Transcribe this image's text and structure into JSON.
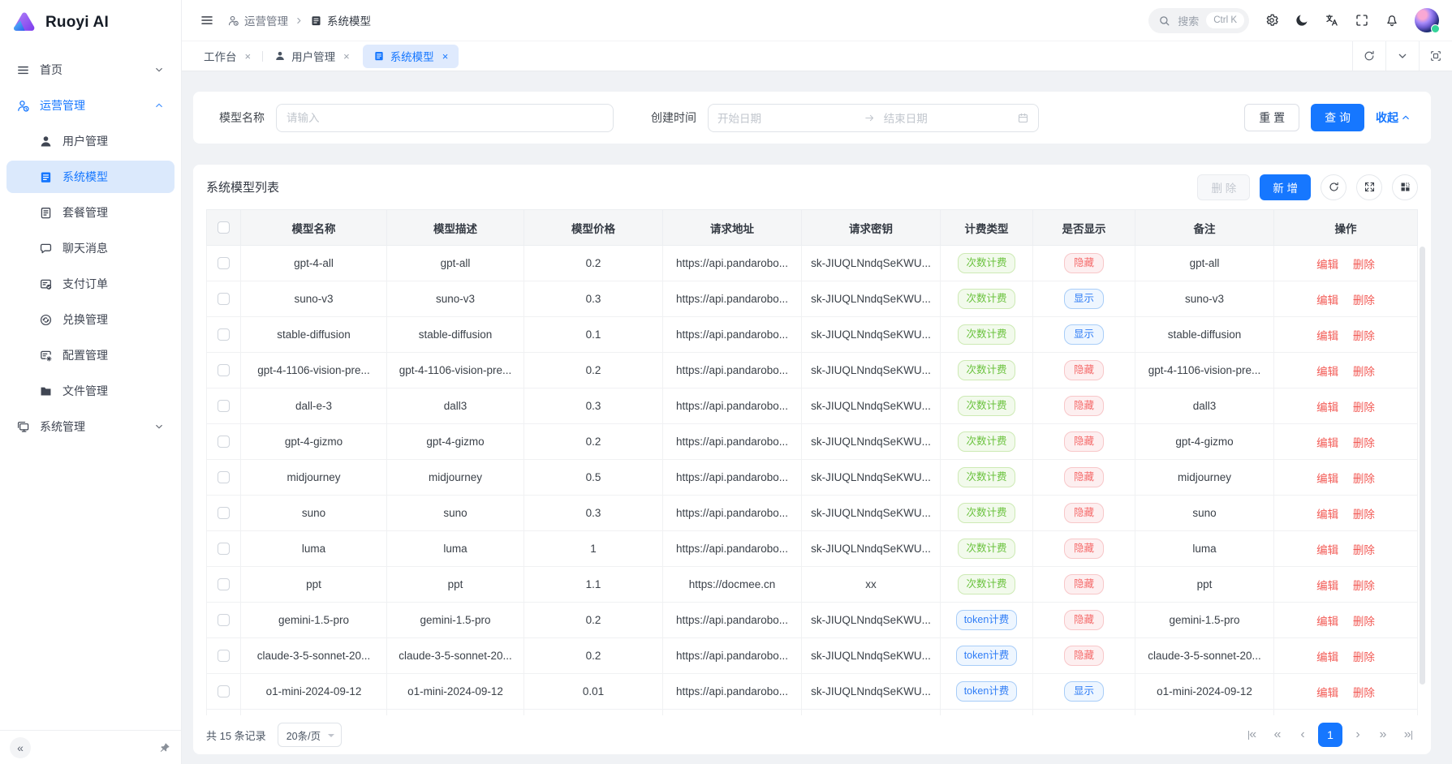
{
  "app": {
    "name": "Ruoyi AI"
  },
  "header": {
    "breadcrumb": [
      "运营管理",
      "系统模型"
    ],
    "search_placeholder": "搜索",
    "search_shortcut": "Ctrl K"
  },
  "sidebar": {
    "items": [
      {
        "label": "首页",
        "icon": "menu",
        "level": "top",
        "chevron": "chevron-down",
        "state": ""
      },
      {
        "label": "运营管理",
        "icon": "operations",
        "level": "top",
        "chevron": "chevron-up",
        "state": "open"
      },
      {
        "label": "用户管理",
        "icon": "user",
        "level": "sub",
        "chevron": "",
        "state": ""
      },
      {
        "label": "系统模型",
        "icon": "model",
        "level": "sub",
        "chevron": "",
        "state": "selected"
      },
      {
        "label": "套餐管理",
        "icon": "package",
        "level": "sub",
        "chevron": "",
        "state": ""
      },
      {
        "label": "聊天消息",
        "icon": "chat",
        "level": "sub",
        "chevron": "",
        "state": ""
      },
      {
        "label": "支付订单",
        "icon": "payment",
        "level": "sub",
        "chevron": "",
        "state": ""
      },
      {
        "label": "兑换管理",
        "icon": "exchange",
        "level": "sub",
        "chevron": "",
        "state": ""
      },
      {
        "label": "配置管理",
        "icon": "config",
        "level": "sub",
        "chevron": "",
        "state": ""
      },
      {
        "label": "文件管理",
        "icon": "folder",
        "level": "sub",
        "chevron": "",
        "state": ""
      },
      {
        "label": "系统管理",
        "icon": "system",
        "level": "top",
        "chevron": "chevron-down",
        "state": ""
      }
    ]
  },
  "tabs": [
    {
      "label": "工作台",
      "icon": "",
      "state": ""
    },
    {
      "label": "用户管理",
      "icon": "user",
      "state": ""
    },
    {
      "label": "系统模型",
      "icon": "model",
      "state": "active"
    }
  ],
  "filter": {
    "name_label": "模型名称",
    "name_placeholder": "请输入",
    "date_label": "创建时间",
    "date_start_placeholder": "开始日期",
    "date_end_placeholder": "结束日期",
    "reset_label": "重 置",
    "search_label": "查 询",
    "collapse_label": "收起"
  },
  "table": {
    "title": "系统模型列表",
    "delete_label": "删 除",
    "add_label": "新 增",
    "columns": [
      "模型名称",
      "模型描述",
      "模型价格",
      "请求地址",
      "请求密钥",
      "计费类型",
      "是否显示",
      "备注",
      "操作"
    ],
    "actions": {
      "edit": "编辑",
      "delete": "删除"
    },
    "rows": [
      {
        "name": "gpt-4-all",
        "desc": "gpt-all",
        "price": "0.2",
        "url": "https://api.pandarobo...",
        "key": "sk-JIUQLNndqSeKWU...",
        "billing": "次数计费",
        "billing_type": "count",
        "visible": "隐藏",
        "visible_type": "hidden",
        "remark": "gpt-all"
      },
      {
        "name": "suno-v3",
        "desc": "suno-v3",
        "price": "0.3",
        "url": "https://api.pandarobo...",
        "key": "sk-JIUQLNndqSeKWU...",
        "billing": "次数计费",
        "billing_type": "count",
        "visible": "显示",
        "visible_type": "shown",
        "remark": "suno-v3"
      },
      {
        "name": "stable-diffusion",
        "desc": "stable-diffusion",
        "price": "0.1",
        "url": "https://api.pandarobo...",
        "key": "sk-JIUQLNndqSeKWU...",
        "billing": "次数计费",
        "billing_type": "count",
        "visible": "显示",
        "visible_type": "shown",
        "remark": "stable-diffusion"
      },
      {
        "name": "gpt-4-1106-vision-pre...",
        "desc": "gpt-4-1106-vision-pre...",
        "price": "0.2",
        "url": "https://api.pandarobo...",
        "key": "sk-JIUQLNndqSeKWU...",
        "billing": "次数计费",
        "billing_type": "count",
        "visible": "隐藏",
        "visible_type": "hidden",
        "remark": "gpt-4-1106-vision-pre..."
      },
      {
        "name": "dall-e-3",
        "desc": "dall3",
        "price": "0.3",
        "url": "https://api.pandarobo...",
        "key": "sk-JIUQLNndqSeKWU...",
        "billing": "次数计费",
        "billing_type": "count",
        "visible": "隐藏",
        "visible_type": "hidden",
        "remark": "dall3"
      },
      {
        "name": "gpt-4-gizmo",
        "desc": "gpt-4-gizmo",
        "price": "0.2",
        "url": "https://api.pandarobo...",
        "key": "sk-JIUQLNndqSeKWU...",
        "billing": "次数计费",
        "billing_type": "count",
        "visible": "隐藏",
        "visible_type": "hidden",
        "remark": "gpt-4-gizmo"
      },
      {
        "name": "midjourney",
        "desc": "midjourney",
        "price": "0.5",
        "url": "https://api.pandarobo...",
        "key": "sk-JIUQLNndqSeKWU...",
        "billing": "次数计费",
        "billing_type": "count",
        "visible": "隐藏",
        "visible_type": "hidden",
        "remark": "midjourney"
      },
      {
        "name": "suno",
        "desc": "suno",
        "price": "0.3",
        "url": "https://api.pandarobo...",
        "key": "sk-JIUQLNndqSeKWU...",
        "billing": "次数计费",
        "billing_type": "count",
        "visible": "隐藏",
        "visible_type": "hidden",
        "remark": "suno"
      },
      {
        "name": "luma",
        "desc": "luma",
        "price": "1",
        "url": "https://api.pandarobo...",
        "key": "sk-JIUQLNndqSeKWU...",
        "billing": "次数计费",
        "billing_type": "count",
        "visible": "隐藏",
        "visible_type": "hidden",
        "remark": "luma"
      },
      {
        "name": "ppt",
        "desc": "ppt",
        "price": "1.1",
        "url": "https://docmee.cn",
        "key": "xx",
        "billing": "次数计费",
        "billing_type": "count",
        "visible": "隐藏",
        "visible_type": "hidden",
        "remark": "ppt"
      },
      {
        "name": "gemini-1.5-pro",
        "desc": "gemini-1.5-pro",
        "price": "0.2",
        "url": "https://api.pandarobo...",
        "key": "sk-JIUQLNndqSeKWU...",
        "billing": "token计费",
        "billing_type": "token",
        "visible": "隐藏",
        "visible_type": "hidden",
        "remark": "gemini-1.5-pro"
      },
      {
        "name": "claude-3-5-sonnet-20...",
        "desc": "claude-3-5-sonnet-20...",
        "price": "0.2",
        "url": "https://api.pandarobo...",
        "key": "sk-JIUQLNndqSeKWU...",
        "billing": "token计费",
        "billing_type": "token",
        "visible": "隐藏",
        "visible_type": "hidden",
        "remark": "claude-3-5-sonnet-20..."
      },
      {
        "name": "o1-mini-2024-09-12",
        "desc": "o1-mini-2024-09-12",
        "price": "0.01",
        "url": "https://api.pandarobo...",
        "key": "sk-JIUQLNndqSeKWU...",
        "billing": "token计费",
        "billing_type": "token",
        "visible": "显示",
        "visible_type": "shown",
        "remark": "o1-mini-2024-09-12"
      }
    ]
  },
  "pagination": {
    "total_text": "共 15 条记录",
    "page_size": "20条/页",
    "current_page": "1"
  },
  "colors": {
    "primary": "#1677ff",
    "badge_green": "#69c23c",
    "badge_red": "#f56c6c",
    "badge_blue": "#2e7cf6",
    "action_red": "#f25a55"
  }
}
